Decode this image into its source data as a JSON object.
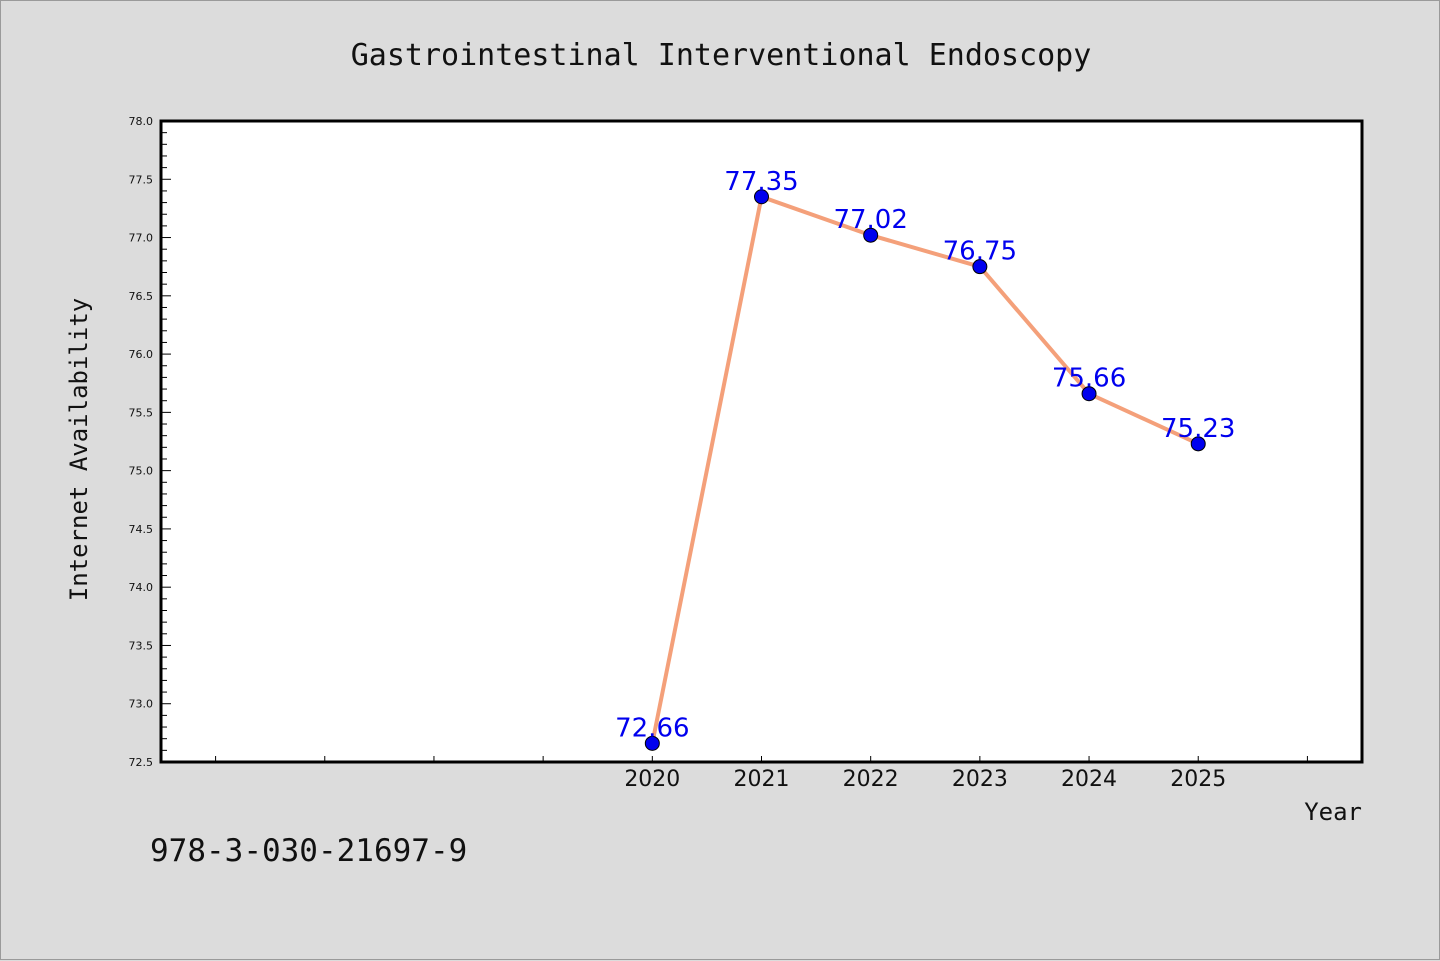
{
  "figure": {
    "background": "#dcdcdc",
    "footer_text": "978-3-030-21697-9"
  },
  "chart_data": {
    "type": "line",
    "title": "Gastrointestinal Interventional Endoscopy",
    "xlabel": "Year",
    "ylabel": "Internet Availability",
    "x": [
      2020,
      2021,
      2022,
      2023,
      2024,
      2025
    ],
    "xlim": [
      2015.5,
      2026.5
    ],
    "ylim": [
      72.5,
      78.0
    ],
    "y_major_ticks": [
      "72.5",
      "73.0",
      "73.5",
      "74.0",
      "74.5",
      "75.0",
      "75.5",
      "76.0",
      "76.5",
      "77.0",
      "77.5",
      "78.0"
    ],
    "grid": false,
    "legend": "none",
    "series": [
      {
        "values": [
          72.66,
          77.35,
          77.02,
          76.75,
          75.66,
          75.23
        ],
        "data_labels": [
          "72.66",
          "77.35",
          "77.02",
          "76.75",
          "75.66",
          "75.23"
        ],
        "line_color": "#f4a07a",
        "marker_color": "#0000ee",
        "label_color": "#0000ee"
      }
    ]
  }
}
